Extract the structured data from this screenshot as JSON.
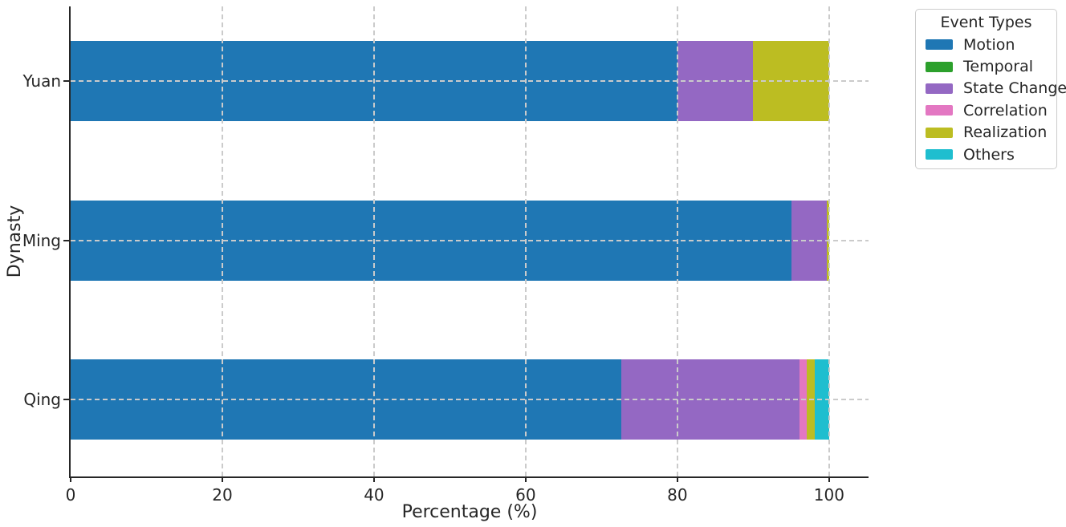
{
  "axes": {
    "xlabel": "Percentage (%)",
    "ylabel": "Dynasty"
  },
  "legend": {
    "title": "Event Types"
  },
  "chart_data": {
    "type": "bar",
    "orientation": "horizontal",
    "stacked": true,
    "title": "",
    "xlabel": "Percentage (%)",
    "ylabel": "Dynasty",
    "categories": [
      "Yuan",
      "Ming",
      "Qing"
    ],
    "series": [
      {
        "name": "Motion",
        "color": "#1f77b4",
        "values": [
          80,
          95,
          72.6
        ]
      },
      {
        "name": "Temporal",
        "color": "#2ca02c",
        "values": [
          0,
          0,
          0
        ]
      },
      {
        "name": "State Change",
        "color": "#9468c3",
        "values": [
          10,
          4.7,
          23.5
        ]
      },
      {
        "name": "Correlation",
        "color": "#e377c2",
        "values": [
          0,
          0,
          0.9
        ]
      },
      {
        "name": "Realization",
        "color": "#bcbd22",
        "values": [
          10,
          0.3,
          1.1
        ]
      },
      {
        "name": "Others",
        "color": "#1fbecf",
        "values": [
          0,
          0,
          1.9
        ]
      }
    ],
    "x_ticks": [
      0,
      20,
      40,
      60,
      80,
      100
    ],
    "xlim": [
      0,
      105.2
    ],
    "grid": {
      "style": "dashed",
      "vertical_at": [
        20,
        40,
        60,
        80,
        100
      ],
      "horizontal_at_categories": true
    },
    "legend": {
      "title": "Event Types",
      "entries": [
        "Motion",
        "Temporal",
        "State Change",
        "Correlation",
        "Realization",
        "Others"
      ],
      "position": "outside-top-right"
    }
  }
}
